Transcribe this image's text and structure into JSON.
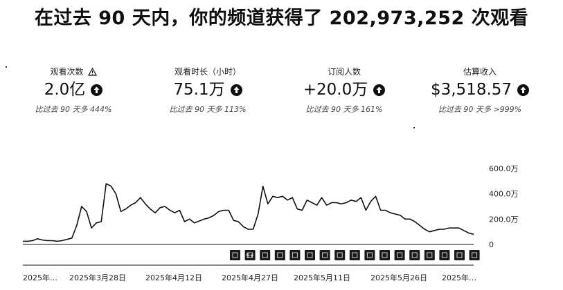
{
  "headline": "在过去 90 天内，你的频道获得了 202,973,252 次观看",
  "metrics": [
    {
      "label": "观看次数",
      "value": "2.0亿",
      "compare": "比过去 90 天多 444%",
      "has_warning": true
    },
    {
      "label": "观看时长（小时）",
      "value": "75.1万",
      "compare": "比过去 90 天多 113%"
    },
    {
      "label": "订阅人数",
      "value": "+20.0万",
      "compare": "比过去 90 天多 161%"
    },
    {
      "label": "估算收入",
      "value": "$3,518.57",
      "compare": "比过去 90 天多 >999%"
    }
  ],
  "icons": {
    "trend": "arrow-up-circle-icon",
    "warning": "warning-triangle-icon",
    "video_marker": "video-thumbnail-icon"
  },
  "video_marker_labels": [
    "",
    "9+",
    "",
    "",
    "",
    "",
    "",
    "",
    "",
    "",
    "",
    "",
    "",
    "",
    "",
    "",
    ""
  ],
  "chart_data": {
    "type": "line",
    "y_ticks": [
      "600.0万",
      "400.0万",
      "200.0万",
      "0"
    ],
    "y_tick_values": [
      6000000,
      4000000,
      2000000,
      0
    ],
    "ylim": [
      0,
      6000000
    ],
    "x_tick_labels": [
      "2025年…",
      "2025年3月28日",
      "2025年4月12日",
      "2025年4月27日",
      "2025年5月11日",
      "2025年5月26日",
      "2025年…"
    ],
    "series": [
      {
        "values": [
          250000,
          250000,
          300000,
          450000,
          350000,
          300000,
          300000,
          250000,
          300000,
          400000,
          500000,
          1500000,
          3000000,
          2600000,
          1300000,
          1700000,
          1800000,
          4800000,
          4600000,
          4000000,
          2600000,
          2800000,
          3100000,
          3300000,
          3700000,
          3200000,
          2800000,
          2500000,
          2900000,
          3000000,
          2700000,
          2500000,
          2700000,
          1800000,
          2000000,
          1700000,
          1850000,
          2000000,
          2100000,
          2300000,
          2600000,
          2700000,
          2700000,
          1900000,
          1800000,
          1400000,
          1200000,
          1200000,
          2400000,
          4600000,
          3200000,
          3800000,
          3700000,
          3800000,
          3500000,
          3700000,
          2800000,
          2700000,
          3500000,
          3300000,
          3100000,
          3700000,
          3100000,
          3300000,
          3300000,
          3200000,
          3300000,
          3500000,
          3400000,
          3700000,
          2700000,
          3400000,
          3800000,
          2700000,
          2700000,
          2500000,
          2400000,
          2300000,
          2000000,
          2000000,
          1800000,
          1500000,
          1200000,
          1000000,
          1100000,
          1200000,
          1200000,
          1300000,
          1300000,
          1300000,
          1100000,
          900000,
          800000
        ]
      }
    ]
  }
}
